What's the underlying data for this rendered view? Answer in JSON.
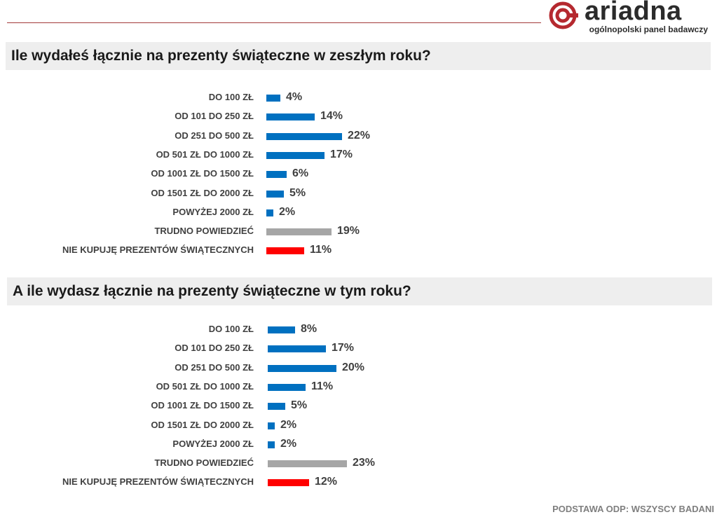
{
  "brand": {
    "name": "ariadna",
    "tagline": "ogólnopolski panel badawczy",
    "color": "#b5292f"
  },
  "footer": "PODSTAWA ODP: WSZYSCY BADANI",
  "colors": {
    "blue": "#0070c0",
    "gray": "#a6a6a6",
    "red": "#ff0000"
  },
  "chart_data": [
    {
      "type": "bar",
      "orientation": "horizontal",
      "title": "Ile wydałeś łącznie na prezenty świąteczne w zeszłym roku?",
      "categories": [
        "DO 100 ZŁ",
        "OD 101 DO 250 ZŁ",
        "OD 251 DO 500 ZŁ",
        "OD 501 ZŁ DO 1000 ZŁ",
        "OD 1001 ZŁ DO 1500 ZŁ",
        "OD 1501 ZŁ DO 2000 ZŁ",
        "POWYŻEJ 2000 ZŁ",
        "TRUDNO POWIEDZIEĆ",
        "NIE KUPUJĘ PREZENTÓW ŚWIĄTECZNYCH"
      ],
      "values": [
        4,
        14,
        22,
        17,
        6,
        5,
        2,
        19,
        11
      ],
      "value_labels": [
        "4%",
        "14%",
        "22%",
        "17%",
        "6%",
        "5%",
        "2%",
        "19%",
        "11%"
      ],
      "bar_colors": [
        "blue",
        "blue",
        "blue",
        "blue",
        "blue",
        "blue",
        "blue",
        "gray",
        "red"
      ],
      "unit": "%",
      "xlim": [
        0,
        100
      ]
    },
    {
      "type": "bar",
      "orientation": "horizontal",
      "title": "A ile wydasz łącznie na prezenty świąteczne w tym roku?",
      "categories": [
        "DO 100 ZŁ",
        "OD 101 DO 250 ZŁ",
        "OD 251 DO 500 ZŁ",
        "OD 501 ZŁ DO 1000 ZŁ",
        "OD 1001 ZŁ DO 1500 ZŁ",
        "OD 1501 ZŁ DO 2000 ZŁ",
        "POWYŻEJ 2000 ZŁ",
        "TRUDNO POWIEDZIEĆ",
        "NIE KUPUJĘ PREZENTÓW ŚWIĄTECZNYCH"
      ],
      "values": [
        8,
        17,
        20,
        11,
        5,
        2,
        2,
        23,
        12
      ],
      "value_labels": [
        "8%",
        "17%",
        "20%",
        "11%",
        "5%",
        "2%",
        "2%",
        "23%",
        "12%"
      ],
      "bar_colors": [
        "blue",
        "blue",
        "blue",
        "blue",
        "blue",
        "blue",
        "blue",
        "gray",
        "red"
      ],
      "unit": "%",
      "xlim": [
        0,
        100
      ]
    }
  ]
}
